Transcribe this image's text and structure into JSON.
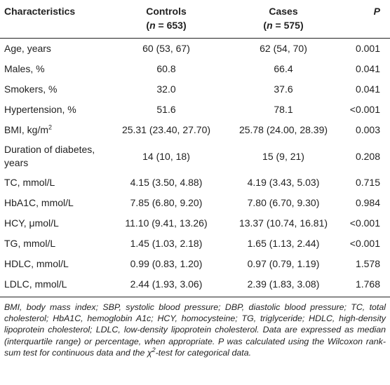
{
  "table": {
    "header": [
      {
        "label": "Characteristics"
      },
      {
        "label": "Controls",
        "count": [
          "(",
          "n",
          " = 653)"
        ]
      },
      {
        "label": "Cases",
        "count": [
          "(",
          "n",
          " = 575)"
        ]
      },
      {
        "label": "P"
      }
    ],
    "rows": [
      [
        "Age, years",
        "60 (53, 67)",
        "62 (54, 70)",
        "0.001"
      ],
      [
        "Males, %",
        "60.8",
        "66.4",
        "0.041"
      ],
      [
        "Smokers, %",
        "32.0",
        "37.6",
        "0.041"
      ],
      [
        "Hypertension, %",
        "51.6",
        "78.1",
        "<0.001"
      ],
      [
        [
          "BMI, kg/m",
          "2"
        ],
        "25.31 (23.40, 27.70)",
        "25.78 (24.00, 28.39)",
        "0.003"
      ],
      [
        "Duration of diabetes, years",
        "14 (10, 18)",
        "15 (9, 21)",
        "0.208"
      ],
      [
        "TC, mmol/L",
        "4.15 (3.50, 4.88)",
        "4.19 (3.43, 5.03)",
        "0.715"
      ],
      [
        "HbA1C, mmol/L",
        "7.85 (6.80, 9.20)",
        "7.80 (6.70, 9.30)",
        "0.984"
      ],
      [
        "HCY, μmol/L",
        "11.10 (9.41, 13.26)",
        "13.37 (10.74, 16.81)",
        "<0.001"
      ],
      [
        "TG, mmol/L",
        "1.45 (1.03, 2.18)",
        "1.65 (1.13, 2.44)",
        "<0.001"
      ],
      [
        "HDLC, mmol/L",
        "0.99 (0.83, 1.20)",
        "0.97 (0.79, 1.19)",
        "1.578"
      ],
      [
        "LDLC, mmol/L",
        "2.44 (1.93, 3.06)",
        "2.39 (1.83, 3.08)",
        "1.768"
      ]
    ],
    "footnote": [
      "BMI, body mass index; SBP, systolic blood pressure; DBP, diastolic blood pressure; TC, total cholesterol; HbA1C, hemoglobin A1c; HCY, homocysteine; TG, triglyceride; HDLC, high-density lipoprotein cholesterol; LDLC, low-density lipoprotein cholesterol. Data are expressed as median (interquartile range) or percentage, when appropriate. P was calculated using the Wilcoxon rank-sum test for continuous data and the χ",
      "2",
      "-test for categorical data."
    ]
  }
}
